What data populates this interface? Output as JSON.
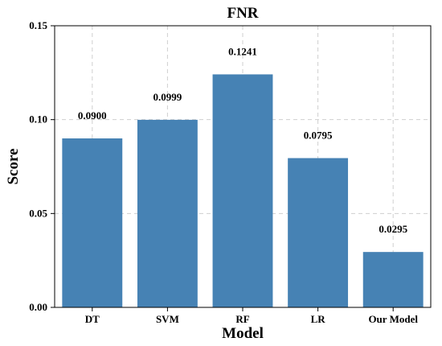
{
  "chart_data": {
    "type": "bar",
    "title": "FNR",
    "xlabel": "Model",
    "ylabel": "Score",
    "categories": [
      "DT",
      "SVM",
      "RF",
      "LR",
      "Our Model"
    ],
    "values": [
      0.09,
      0.0999,
      0.1241,
      0.0795,
      0.0295
    ],
    "value_labels": [
      "0.0900",
      "0.0999",
      "0.1241",
      "0.0795",
      "0.0295"
    ],
    "ylim": [
      0,
      0.15
    ],
    "yticks": [
      0.0,
      0.05,
      0.1,
      0.15
    ],
    "ytick_labels": [
      "0.00",
      "0.05",
      "0.10",
      "0.15"
    ],
    "grid": true,
    "bar_color": "#4682b4"
  }
}
